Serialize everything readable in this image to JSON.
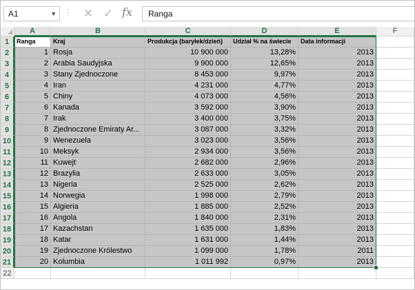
{
  "formula_bar": {
    "name_box": "A1",
    "value": "Ranga",
    "cancel_glyph": "✕",
    "enter_glyph": "✓",
    "fx_glyph": "fx"
  },
  "columns": [
    "A",
    "B",
    "C",
    "D",
    "E",
    "F"
  ],
  "row_numbers": [
    "1",
    "2",
    "3",
    "4",
    "5",
    "6",
    "7",
    "8",
    "9",
    "10",
    "11",
    "12",
    "13",
    "14",
    "15",
    "16",
    "17",
    "18",
    "19",
    "20",
    "21",
    "22"
  ],
  "header_row": [
    "Ranga",
    "Kraj",
    "Produkcja (baryłek/dzień)",
    "Udział % na świecie",
    "Data informacji"
  ],
  "rows": [
    [
      "1",
      "Rosja",
      "10 900 000",
      "13,28%",
      "2013"
    ],
    [
      "2",
      "Arabia Saudyjska",
      "9 900 000",
      "12,65%",
      "2013"
    ],
    [
      "3",
      "Stany Zjednoczone",
      "8 453 000",
      "9,97%",
      "2013"
    ],
    [
      "4",
      "Iran",
      "4 231 000",
      "4,77%",
      "2013"
    ],
    [
      "5",
      "Chiny",
      "4 073 000",
      "4,56%",
      "2013"
    ],
    [
      "6",
      "Kanada",
      "3 592 000",
      "3,90%",
      "2013"
    ],
    [
      "7",
      "Irak",
      "3 400 000",
      "3,75%",
      "2013"
    ],
    [
      "8",
      "Zjednoczone Emiraty Ar...",
      "3 087 000",
      "3,32%",
      "2013"
    ],
    [
      "9",
      "Wenezuela",
      "3 023 000",
      "3,56%",
      "2013"
    ],
    [
      "10",
      "Meksyk",
      "2 934 000",
      "3,56%",
      "2013"
    ],
    [
      "11",
      "Kuwejt",
      "2 682 000",
      "2,96%",
      "2013"
    ],
    [
      "12",
      "Brazylia",
      "2 633 000",
      "3,05%",
      "2013"
    ],
    [
      "13",
      "Nigeria",
      "2 525 000",
      "2,62%",
      "2013"
    ],
    [
      "14",
      "Norwegia",
      "1 998 000",
      "2,79%",
      "2013"
    ],
    [
      "15",
      "Algieria",
      "1 885 000",
      "2,52%",
      "2013"
    ],
    [
      "16",
      "Angola",
      "1 840 000",
      "2,31%",
      "2013"
    ],
    [
      "17",
      "Kazachstan",
      "1 635 000",
      "1,83%",
      "2013"
    ],
    [
      "18",
      "Katar",
      "1 631 000",
      "1,44%",
      "2013"
    ],
    [
      "19",
      "Zjednoczone Królestwo",
      "1 099 000",
      "1,78%",
      "2011"
    ],
    [
      "20",
      "Kolumbia",
      "1 011 992",
      "0,97%",
      "2013"
    ]
  ],
  "colors": {
    "accent": "#217346",
    "selection_fill": "#c6c6c6",
    "header_bg": "#f0f0f0"
  }
}
